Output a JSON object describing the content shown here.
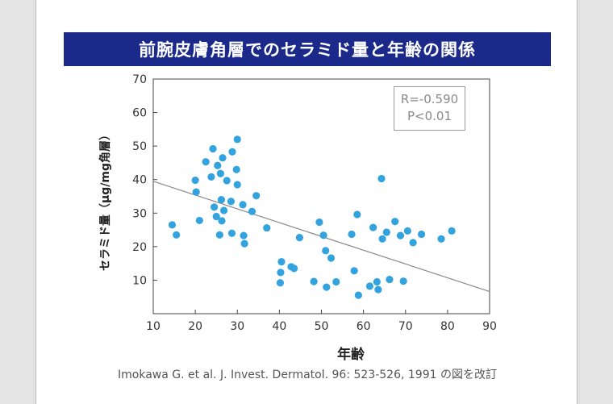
{
  "title": "前腕皮膚角層でのセラミド量と年齢の関係",
  "stats": {
    "r": "R=-0.590",
    "p": "P<0.01"
  },
  "citation": "Imokawa G. et al. J. Invest. Dermatol. 96: 523-526, 1991 の図を改訂",
  "colors": {
    "title_bg": "#1b2a8a",
    "points": "#33a3e0",
    "trendline": "#8a8a8a"
  },
  "chart_data": {
    "type": "scatter",
    "xlabel": "年齢",
    "ylabel": "セラミド量（μg/mg角層）",
    "xlim": [
      10,
      90
    ],
    "ylim": [
      0,
      70
    ],
    "xticks": [
      10,
      20,
      30,
      40,
      50,
      60,
      70,
      80,
      90
    ],
    "yticks": [
      10,
      20,
      30,
      40,
      50,
      60,
      70
    ],
    "grid": false,
    "trendline": {
      "x": [
        10,
        90
      ],
      "y": [
        39.5,
        6.6
      ]
    },
    "points": [
      {
        "x": 14.5,
        "y": 26.5
      },
      {
        "x": 15.5,
        "y": 23.5
      },
      {
        "x": 20.0,
        "y": 39.8
      },
      {
        "x": 20.2,
        "y": 36.3
      },
      {
        "x": 21.0,
        "y": 27.8
      },
      {
        "x": 22.5,
        "y": 45.3
      },
      {
        "x": 23.8,
        "y": 40.8
      },
      {
        "x": 24.2,
        "y": 49.2
      },
      {
        "x": 24.5,
        "y": 31.8
      },
      {
        "x": 25.0,
        "y": 29.0
      },
      {
        "x": 25.3,
        "y": 44.2
      },
      {
        "x": 25.8,
        "y": 23.5
      },
      {
        "x": 26.0,
        "y": 41.8
      },
      {
        "x": 26.2,
        "y": 34.0
      },
      {
        "x": 26.3,
        "y": 27.7
      },
      {
        "x": 26.5,
        "y": 46.5
      },
      {
        "x": 26.8,
        "y": 30.8
      },
      {
        "x": 27.5,
        "y": 39.7
      },
      {
        "x": 28.5,
        "y": 33.5
      },
      {
        "x": 28.7,
        "y": 24.0
      },
      {
        "x": 28.8,
        "y": 48.3
      },
      {
        "x": 29.8,
        "y": 43.0
      },
      {
        "x": 30.0,
        "y": 38.5
      },
      {
        "x": 30.0,
        "y": 52.0
      },
      {
        "x": 31.3,
        "y": 32.5
      },
      {
        "x": 31.5,
        "y": 23.3
      },
      {
        "x": 31.7,
        "y": 20.9
      },
      {
        "x": 33.5,
        "y": 30.5
      },
      {
        "x": 34.5,
        "y": 35.2
      },
      {
        "x": 37.0,
        "y": 25.6
      },
      {
        "x": 40.2,
        "y": 9.2
      },
      {
        "x": 40.3,
        "y": 12.3
      },
      {
        "x": 40.5,
        "y": 15.5
      },
      {
        "x": 42.8,
        "y": 14.0
      },
      {
        "x": 43.5,
        "y": 13.5
      },
      {
        "x": 44.8,
        "y": 22.7
      },
      {
        "x": 48.2,
        "y": 9.6
      },
      {
        "x": 49.5,
        "y": 27.3
      },
      {
        "x": 50.5,
        "y": 23.4
      },
      {
        "x": 51.0,
        "y": 18.8
      },
      {
        "x": 51.2,
        "y": 7.9
      },
      {
        "x": 52.3,
        "y": 16.6
      },
      {
        "x": 53.5,
        "y": 9.5
      },
      {
        "x": 57.2,
        "y": 23.7
      },
      {
        "x": 57.8,
        "y": 12.8
      },
      {
        "x": 58.5,
        "y": 29.6
      },
      {
        "x": 58.8,
        "y": 5.5
      },
      {
        "x": 61.5,
        "y": 8.2
      },
      {
        "x": 62.3,
        "y": 25.7
      },
      {
        "x": 63.2,
        "y": 9.5
      },
      {
        "x": 63.5,
        "y": 7.2
      },
      {
        "x": 64.3,
        "y": 40.3
      },
      {
        "x": 64.5,
        "y": 22.3
      },
      {
        "x": 65.5,
        "y": 24.3
      },
      {
        "x": 66.2,
        "y": 10.2
      },
      {
        "x": 67.5,
        "y": 27.5
      },
      {
        "x": 68.8,
        "y": 23.3
      },
      {
        "x": 69.5,
        "y": 9.7
      },
      {
        "x": 70.5,
        "y": 24.7
      },
      {
        "x": 71.8,
        "y": 21.2
      },
      {
        "x": 73.8,
        "y": 23.7
      },
      {
        "x": 78.5,
        "y": 22.3
      },
      {
        "x": 81.0,
        "y": 24.7
      }
    ]
  }
}
